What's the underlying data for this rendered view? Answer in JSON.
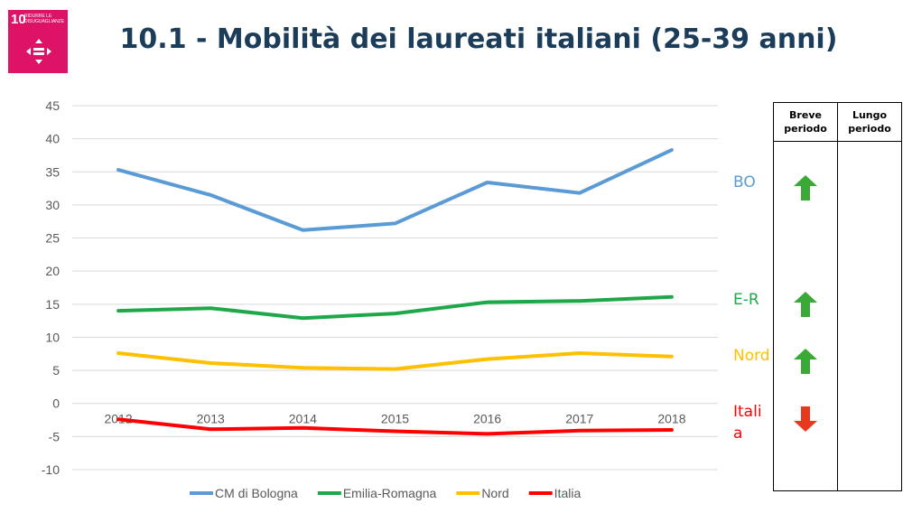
{
  "sdg_badge": {
    "number": "10",
    "label": "RIDURRE LE DISUGUAGLIANZE",
    "color": "#dd1367",
    "icon": "equality-arrows-icon"
  },
  "title": "10.1 - Mobilità dei laureati italiani (25-39 anni)",
  "chart_data": {
    "type": "line",
    "title": "",
    "xlabel": "",
    "ylabel": "",
    "categories": [
      "2012",
      "2013",
      "2014",
      "2015",
      "2016",
      "2017",
      "2018"
    ],
    "ylim": [
      -10,
      45
    ],
    "yticks": [
      45,
      40,
      35,
      30,
      25,
      20,
      15,
      10,
      5,
      0,
      -5,
      -10
    ],
    "grid": true,
    "legend": "bottom",
    "series": [
      {
        "name": "CM di Bologna",
        "color": "#5b9bd5",
        "values": [
          35.3,
          31.5,
          26.2,
          27.2,
          33.4,
          31.8,
          38.3
        ]
      },
      {
        "name": "Emilia-Romagna",
        "color": "#1ea84a",
        "values": [
          14.0,
          14.4,
          12.9,
          13.6,
          15.3,
          15.5,
          16.1
        ]
      },
      {
        "name": "Nord",
        "color": "#ffc000",
        "values": [
          7.6,
          6.1,
          5.4,
          5.2,
          6.7,
          7.6,
          7.1
        ]
      },
      {
        "name": "Italia",
        "color": "#ff0000",
        "values": [
          -2.4,
          -3.9,
          -3.7,
          -4.2,
          -4.6,
          -4.1,
          -4.0
        ]
      }
    ]
  },
  "series_tags": [
    {
      "text": "BO",
      "color": "#5b9bd5"
    },
    {
      "text": "E-R",
      "color": "#1ea84a"
    },
    {
      "text": "Nord",
      "color": "#ffc000"
    },
    {
      "text": "Itali\na",
      "color": "#ff0000"
    }
  ],
  "trend_table": {
    "headers": [
      "Breve\nperiodo",
      "Lungo\nperiodo"
    ],
    "short_term": [
      {
        "series": "BO",
        "direction": "up",
        "icon": "arrow-up-icon",
        "color": "#3aa935"
      },
      {
        "series": "E-R",
        "direction": "up",
        "icon": "arrow-up-icon",
        "color": "#3aa935"
      },
      {
        "series": "Nord",
        "direction": "up",
        "icon": "arrow-up-icon",
        "color": "#3aa935"
      },
      {
        "series": "Italia",
        "direction": "down",
        "icon": "arrow-down-icon",
        "color": "#e8391e"
      }
    ]
  }
}
